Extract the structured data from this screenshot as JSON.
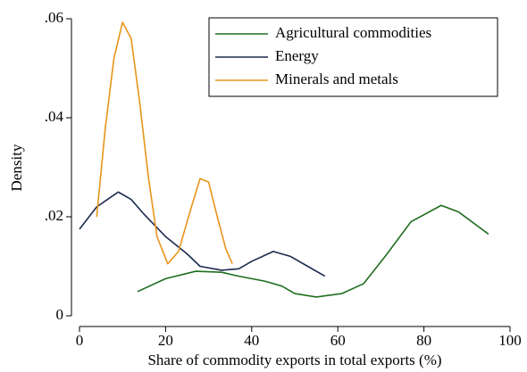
{
  "chart_data": {
    "type": "line",
    "xlabel": "Share of commodity exports in total exports (%)",
    "ylabel": "Density",
    "xlim": [
      0,
      100
    ],
    "xticks": [
      0,
      20,
      40,
      60,
      80,
      100
    ],
    "ylim": [
      0,
      0.06
    ],
    "yticks": [
      0,
      {
        "value": 0.02,
        "label": ".02"
      },
      {
        "value": 0.04,
        "label": ".04"
      },
      {
        "value": 0.06,
        "label": ".06"
      }
    ],
    "legend": "upper right",
    "series": [
      {
        "name": "Agricultural commodities",
        "color": "#1f6e1f",
        "x": [
          13.5,
          20,
          27,
          33,
          37,
          43,
          47,
          50,
          55,
          61,
          66,
          71,
          77,
          84,
          88,
          95
        ],
        "values": [
          0.0049,
          0.0075,
          0.009,
          0.0088,
          0.008,
          0.007,
          0.006,
          0.0045,
          0.0038,
          0.0045,
          0.0065,
          0.012,
          0.019,
          0.0223,
          0.021,
          0.0165
        ]
      },
      {
        "name": "Energy",
        "color": "#1b2a4e",
        "x": [
          0,
          4,
          9,
          12,
          15,
          20,
          25,
          28,
          33,
          37,
          40,
          45,
          49,
          53,
          57
        ],
        "values": [
          0.0175,
          0.022,
          0.025,
          0.0235,
          0.0205,
          0.016,
          0.0125,
          0.01,
          0.0092,
          0.0095,
          0.011,
          0.013,
          0.012,
          0.01,
          0.008
        ]
      },
      {
        "name": "Minerals and metals",
        "color": "#e8951a",
        "x": [
          4,
          6,
          8,
          10,
          12,
          14,
          16,
          18,
          20.5,
          23,
          26,
          28,
          30,
          32,
          34,
          35.5
        ],
        "values": [
          0.02,
          0.038,
          0.052,
          0.0593,
          0.056,
          0.043,
          0.028,
          0.016,
          0.0105,
          0.013,
          0.022,
          0.0277,
          0.027,
          0.02,
          0.0135,
          0.0105
        ]
      }
    ]
  }
}
